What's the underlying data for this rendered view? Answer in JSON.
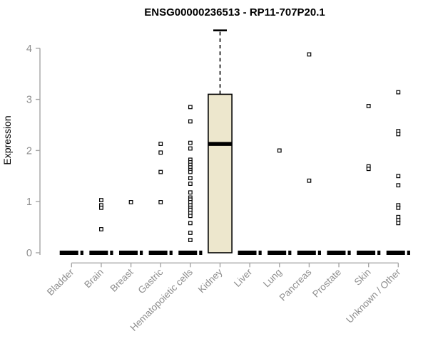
{
  "header": {
    "title": "ENSG00000236513 - RP11-707P20.1"
  },
  "chart_data": {
    "type": "boxplot",
    "title": "ENSG00000236513 - RP11-707P20.1",
    "ylabel": "Expression",
    "xlabel": "",
    "ylim": [
      0,
      4.35
    ],
    "yticks": [
      0,
      1,
      2,
      3,
      4
    ],
    "grid": false,
    "legend": false,
    "categories": [
      "Bladder",
      "Brain",
      "Breast",
      "Gastric",
      "Hematopoietic cells",
      "Kidney",
      "Liver",
      "Lung",
      "Pancreas",
      "Prostate",
      "Skin",
      "Unknown / Other"
    ],
    "series": [
      {
        "name": "Bladder",
        "q1": 0,
        "median": 0,
        "q3": 0,
        "whisker_low": 0,
        "whisker_high": 0,
        "outliers": []
      },
      {
        "name": "Brain",
        "q1": 0,
        "median": 0,
        "q3": 0,
        "whisker_low": 0,
        "whisker_high": 0,
        "outliers": [
          1.03,
          0.93,
          0.88,
          0.46
        ]
      },
      {
        "name": "Breast",
        "q1": 0,
        "median": 0,
        "q3": 0,
        "whisker_low": 0,
        "whisker_high": 0,
        "outliers": [
          0.99
        ]
      },
      {
        "name": "Gastric",
        "q1": 0,
        "median": 0,
        "q3": 0,
        "whisker_low": 0,
        "whisker_high": 0,
        "outliers": [
          2.13,
          1.96,
          1.58,
          0.99
        ]
      },
      {
        "name": "Hematopoietic cells",
        "q1": 0,
        "median": 0,
        "q3": 0,
        "whisker_low": 0,
        "whisker_high": 0,
        "outliers": [
          2.85,
          2.57,
          2.15,
          2.04,
          1.82,
          1.77,
          1.72,
          1.67,
          1.62,
          1.58,
          1.46,
          1.35,
          1.18,
          1.08,
          1.04,
          0.99,
          0.93,
          0.88,
          0.84,
          0.78,
          0.72,
          0.58,
          0.39,
          0.25
        ]
      },
      {
        "name": "Kidney",
        "q1": 0,
        "median": 2.13,
        "q3": 3.1,
        "whisker_low": 0,
        "whisker_high": 4.35,
        "outliers": []
      },
      {
        "name": "Liver",
        "q1": 0,
        "median": 0,
        "q3": 0,
        "whisker_low": 0,
        "whisker_high": 0,
        "outliers": []
      },
      {
        "name": "Lung",
        "q1": 0,
        "median": 0,
        "q3": 0,
        "whisker_low": 0,
        "whisker_high": 0,
        "outliers": [
          2.0
        ]
      },
      {
        "name": "Pancreas",
        "q1": 0,
        "median": 0,
        "q3": 0,
        "whisker_low": 0,
        "whisker_high": 0,
        "outliers": [
          3.88,
          1.41
        ]
      },
      {
        "name": "Prostate",
        "q1": 0,
        "median": 0,
        "q3": 0,
        "whisker_low": 0,
        "whisker_high": 0,
        "outliers": []
      },
      {
        "name": "Skin",
        "q1": 0,
        "median": 0,
        "q3": 0,
        "whisker_low": 0,
        "whisker_high": 0,
        "outliers": [
          2.87,
          1.69,
          1.64
        ]
      },
      {
        "name": "Unknown / Other",
        "q1": 0,
        "median": 0,
        "q3": 0,
        "whisker_low": 0,
        "whisker_high": 0,
        "outliers": [
          3.14,
          2.38,
          2.32,
          1.5,
          1.32,
          0.93,
          0.88,
          0.7,
          0.64,
          0.58
        ]
      }
    ],
    "colors": {
      "box_fill": "#EDE7CD",
      "box_stroke": "#000000",
      "point_stroke": "#000000",
      "point_fill": "#ffffff",
      "axis_line": "#a6a6a6",
      "axis_text": "#8e8e8e",
      "title_text": "#000000",
      "background": "#ffffff"
    }
  }
}
